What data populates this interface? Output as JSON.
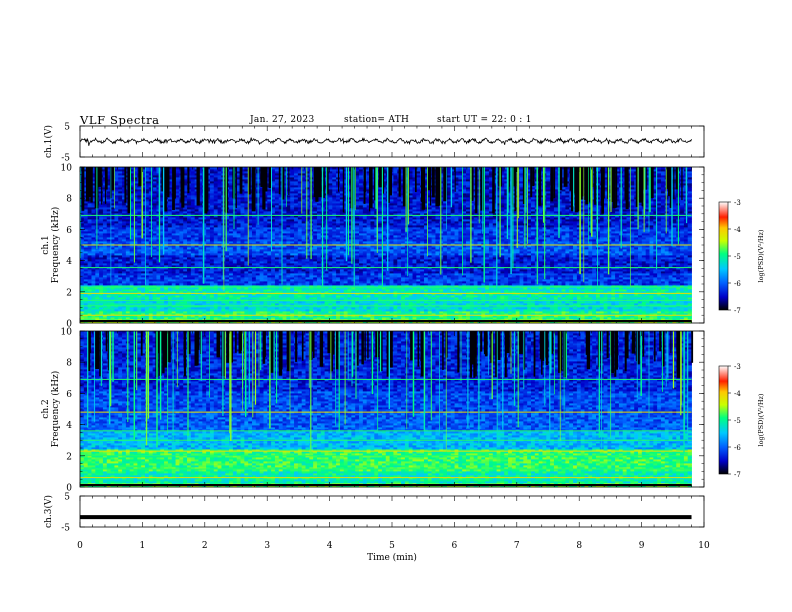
{
  "header": {
    "title": "VLF Spectra",
    "date": "Jan. 27, 2023",
    "station": "station= ATH",
    "start": "start UT = 22: 0 : 1"
  },
  "chart_data": [
    {
      "type": "line",
      "panel": "ch1-waveform",
      "ylabel": "ch.1(V)",
      "yticks": [
        "5",
        "-5"
      ],
      "ylim": [
        -5,
        5
      ],
      "x": [
        0,
        9.8
      ],
      "approx_level": 0.2,
      "xlim": [
        0,
        10
      ]
    },
    {
      "type": "heatmap",
      "panel": "ch1-spectrogram",
      "ylabel_channel": "ch.1",
      "ylabel": "Frequency (kHz)",
      "yticks": [
        "0",
        "2",
        "4",
        "6",
        "8",
        "10"
      ],
      "ylim": [
        0,
        10
      ],
      "xlim": [
        0,
        10
      ],
      "data_extent_min": 9.8,
      "colorbar": {
        "label": "log(PSD)(V²/Hz)",
        "ticks": [
          "-3",
          "-4",
          "-5",
          "-6",
          "-7"
        ],
        "range": [
          -7,
          -3
        ]
      }
    },
    {
      "type": "heatmap",
      "panel": "ch2-spectrogram",
      "ylabel_channel": "ch.2",
      "ylabel": "Frequency (kHz)",
      "yticks": [
        "0",
        "2",
        "4",
        "6",
        "8",
        "10"
      ],
      "ylim": [
        0,
        10
      ],
      "xlim": [
        0,
        10
      ],
      "data_extent_min": 9.8,
      "colorbar": {
        "label": "log(PSD)(V²/Hz)",
        "ticks": [
          "-3",
          "-4",
          "-5",
          "-6",
          "-7"
        ],
        "range": [
          -7,
          -3
        ]
      }
    },
    {
      "type": "line",
      "panel": "ch3-waveform",
      "ylabel": "ch.3(V)",
      "yticks": [
        "5",
        "-5"
      ],
      "ylim": [
        -5,
        5
      ],
      "x": [
        0,
        9.8
      ],
      "approx_level": -1.8,
      "xlim": [
        0,
        10
      ]
    }
  ],
  "xaxis": {
    "label": "Time (min)",
    "ticks": [
      "0",
      "1",
      "2",
      "3",
      "4",
      "5",
      "6",
      "7",
      "8",
      "9",
      "10"
    ]
  },
  "colors": {
    "cmap": [
      "#000000",
      "#0000c8",
      "#0060ff",
      "#00c8ff",
      "#00ff80",
      "#c8ff00",
      "#ffc800",
      "#ff2000",
      "#ffffff"
    ],
    "background": "#ffffff",
    "axis": "#000000"
  }
}
